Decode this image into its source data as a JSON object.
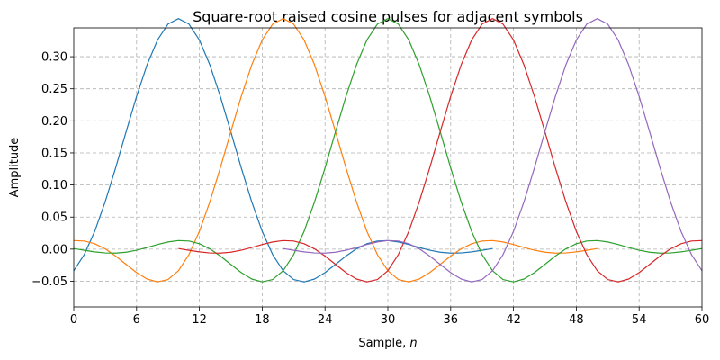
{
  "chart_data": {
    "type": "line",
    "title": "Square-root raised cosine pulses for adjacent symbols",
    "xlabel": "Sample, ",
    "xlabel_var": "n",
    "ylabel": "Amplitude",
    "xlim": [
      0,
      60
    ],
    "ylim": [
      -0.09,
      0.345
    ],
    "xticks": [
      0,
      6,
      12,
      18,
      24,
      30,
      36,
      42,
      48,
      54,
      60
    ],
    "yticks": [
      -0.05,
      0.0,
      0.05,
      0.1,
      0.15,
      0.2,
      0.25,
      0.3
    ],
    "ytick_labels": [
      "−0.05",
      "0.00",
      "0.05",
      "0.10",
      "0.15",
      "0.20",
      "0.25",
      "0.30"
    ],
    "grid": true,
    "pulse": {
      "span_samples": 60,
      "peak_amplitude": 0.326,
      "note": "each series is the same square-root raised cosine pulse shifted by 10 samples"
    },
    "series": [
      {
        "color": "#1f77b4",
        "center": 10
      },
      {
        "color": "#ff7f0e",
        "center": 20
      },
      {
        "color": "#2ca02c",
        "center": 30
      },
      {
        "color": "#d62728",
        "center": 40
      },
      {
        "color": "#9467bd",
        "center": 50
      }
    ]
  }
}
